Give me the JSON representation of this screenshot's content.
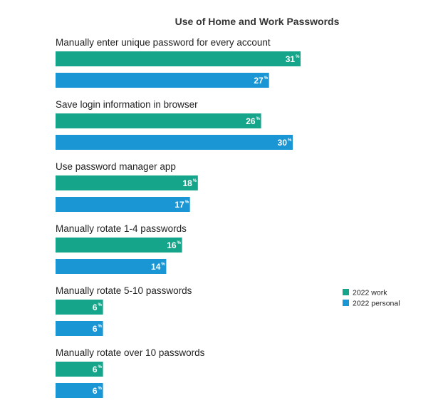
{
  "chart_data": {
    "type": "bar",
    "orientation": "horizontal",
    "title": "Use of Home and Work Passwords",
    "value_suffix": "%",
    "categories": [
      "Manually enter unique password for every account",
      "Save login information in browser",
      "Use password manager app",
      "Manually rotate 1-4 passwords",
      "Manually rotate 5-10 passwords",
      "Manually rotate over 10 passwords"
    ],
    "series": [
      {
        "name": "2022 work",
        "color": "#14a58a",
        "values": [
          31,
          26,
          18,
          16,
          6,
          6
        ]
      },
      {
        "name": "2022 personal",
        "color": "#1996d3",
        "values": [
          27,
          30,
          17,
          14,
          6,
          6
        ]
      }
    ],
    "legend_position": "right",
    "grid": false,
    "axes_visible": false
  }
}
